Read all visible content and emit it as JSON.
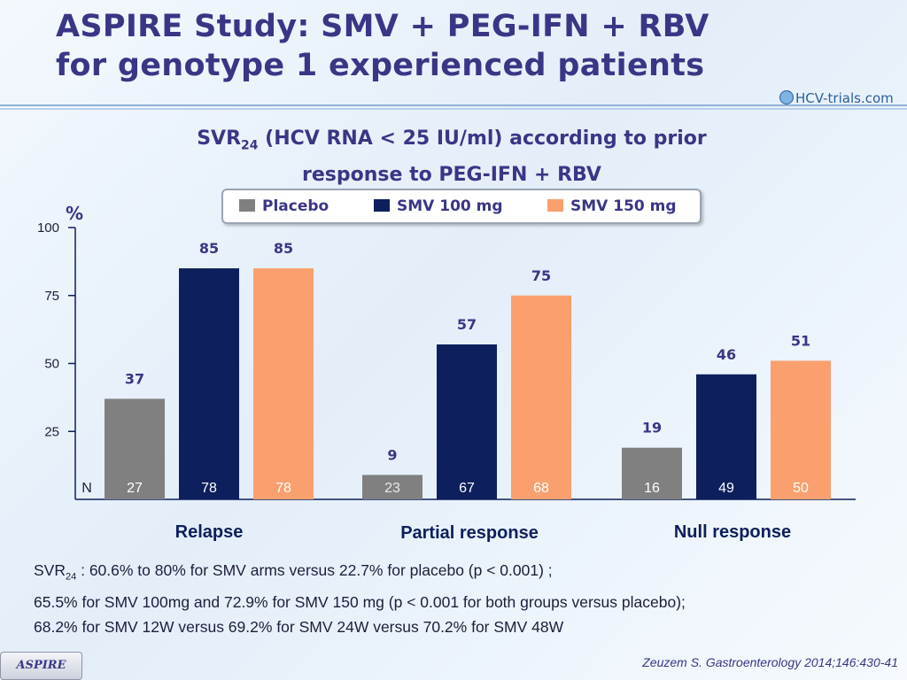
{
  "title": {
    "line1": "ASPIRE Study: SMV + PEG-IFN + RBV",
    "line2": "for genotype 1 experienced patients"
  },
  "logo": {
    "text": "HCV-trials.com"
  },
  "subtitle": {
    "prefix": "SVR",
    "subscript": "24",
    "line1_rest": " (HCV RNA < 25 IU/ml) according to prior",
    "line2": "response to PEG-IFN + RBV"
  },
  "colors": {
    "placebo": "#808080",
    "smv100": "#0d1f5c",
    "smv150": "#f9a06e",
    "text": "#3a3686"
  },
  "chart_data": {
    "type": "bar",
    "ylabel": "%",
    "ylim": [
      0,
      100
    ],
    "yticks": [
      25,
      50,
      75,
      100
    ],
    "n_label": "N",
    "categories": [
      "Relapse",
      "Partial response",
      "Null response"
    ],
    "series": [
      {
        "name": "Placebo",
        "color": "#808080",
        "values": [
          37,
          9,
          19
        ],
        "n": [
          27,
          23,
          16
        ]
      },
      {
        "name": "SMV 100 mg",
        "color": "#0d1f5c",
        "values": [
          85,
          57,
          46
        ],
        "n": [
          78,
          67,
          49
        ]
      },
      {
        "name": "SMV 150 mg",
        "color": "#f9a06e",
        "values": [
          85,
          75,
          51
        ],
        "n": [
          78,
          68,
          50
        ]
      }
    ]
  },
  "note": {
    "svr_prefix": "SVR",
    "svr_sub": "24",
    "line1_rest": " : 60.6% to 80% for SMV arms versus 22.7% for placebo (p < 0.001) ;",
    "line2": "65.5% for SMV 100mg and 72.9% for SMV 150 mg (p < 0.001 for both groups versus placebo);",
    "line3": "68.2% for SMV 12W versus 69.2% for SMV 24W versus 70.2% for SMV 48W"
  },
  "badge": "ASPIRE",
  "citation": "Zeuzem S. Gastroenterology 2014;146:430-41"
}
